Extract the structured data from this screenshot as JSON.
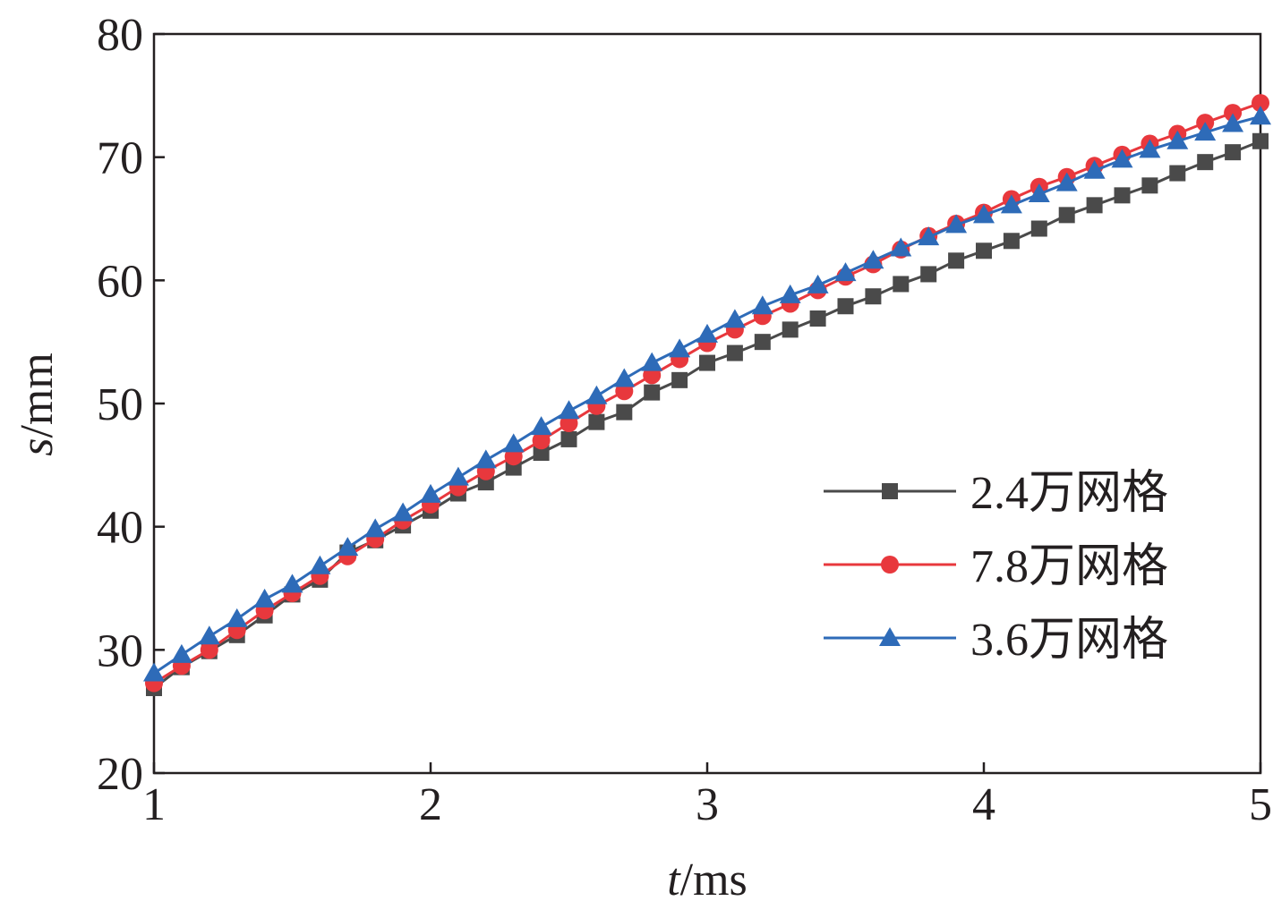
{
  "chart_data": {
    "type": "line",
    "xlabel": {
      "var": "t",
      "unit": "/ms"
    },
    "ylabel": {
      "var": "s",
      "unit": "/mm"
    },
    "xlim": [
      1,
      5
    ],
    "ylim": [
      20,
      80
    ],
    "xticks": [
      "1",
      "2",
      "3",
      "4",
      "5"
    ],
    "yticks": [
      "20",
      "30",
      "40",
      "50",
      "60",
      "70",
      "80"
    ],
    "grid": false,
    "legend_position": "right",
    "x": [
      1.0,
      1.1,
      1.2,
      1.3,
      1.4,
      1.5,
      1.6,
      1.7,
      1.8,
      1.9,
      2.0,
      2.1,
      2.2,
      2.3,
      2.4,
      2.5,
      2.6,
      2.7,
      2.8,
      2.9,
      3.0,
      3.1,
      3.2,
      3.3,
      3.4,
      3.5,
      3.6,
      3.7,
      3.8,
      3.9,
      4.0,
      4.1,
      4.2,
      4.3,
      4.4,
      4.5,
      4.6,
      4.7,
      4.8,
      4.9,
      5.0
    ],
    "series": [
      {
        "name": "2.4万网格",
        "color": "#4a4a4a",
        "marker": "square",
        "values": [
          26.9,
          28.6,
          29.9,
          31.2,
          32.8,
          34.5,
          35.7,
          37.9,
          38.9,
          40.1,
          41.3,
          42.7,
          43.6,
          44.8,
          46.0,
          47.1,
          48.5,
          49.3,
          50.9,
          51.9,
          53.3,
          54.1,
          55.0,
          56.0,
          56.9,
          57.9,
          58.7,
          59.7,
          60.5,
          61.6,
          62.4,
          63.2,
          64.2,
          65.3,
          66.1,
          66.9,
          67.7,
          68.7,
          69.6,
          70.4,
          71.3
        ]
      },
      {
        "name": "7.8万网格",
        "color": "#e8383d",
        "marker": "circle",
        "values": [
          27.3,
          28.7,
          30.0,
          31.6,
          33.2,
          34.6,
          36.0,
          37.6,
          39.0,
          40.5,
          41.8,
          43.2,
          44.5,
          45.7,
          47.0,
          48.4,
          49.8,
          51.0,
          52.3,
          53.6,
          54.9,
          56.0,
          57.1,
          58.1,
          59.2,
          60.3,
          61.3,
          62.5,
          63.6,
          64.6,
          65.5,
          66.6,
          67.6,
          68.4,
          69.3,
          70.2,
          71.1,
          71.9,
          72.8,
          73.6,
          74.4
        ]
      },
      {
        "name": "3.6万网格",
        "color": "#2e6bb8",
        "marker": "triangle",
        "values": [
          28.1,
          29.6,
          31.1,
          32.5,
          34.1,
          35.3,
          36.8,
          38.3,
          39.8,
          41.1,
          42.6,
          44.0,
          45.4,
          46.7,
          48.1,
          49.4,
          50.6,
          52.0,
          53.3,
          54.4,
          55.6,
          56.8,
          57.9,
          58.8,
          59.6,
          60.6,
          61.6,
          62.6,
          63.5,
          64.5,
          65.3,
          66.1,
          67.0,
          67.9,
          68.9,
          69.8,
          70.6,
          71.3,
          72.0,
          72.7,
          73.3
        ]
      }
    ],
    "legend_order": [
      0,
      1,
      2
    ]
  }
}
